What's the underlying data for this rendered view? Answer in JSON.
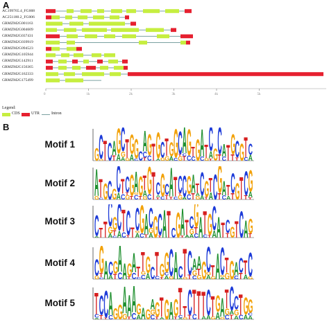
{
  "panel_a": {
    "label": "A",
    "genes": [
      "AC199765.4_FG008",
      "AC251180.2_FG006",
      "GRMZM2G001163",
      "GRMZM2G004609",
      "GRMZM2G037431",
      "GRMZM2G039919",
      "GRMZM2G094523",
      "GRMZM2G105944",
      "GRMZM2G142911",
      "GRMZM2G156365",
      "GRMZM2G162333",
      "GRMZM2G175499"
    ],
    "axis_ticks": [
      "0",
      "1k",
      "2k",
      "3k",
      "4k",
      "5k"
    ],
    "legend": {
      "title": "Legend:",
      "items": [
        {
          "label": "CDS",
          "color": "#c6ee40"
        },
        {
          "label": "UTR",
          "color": "#e6202f"
        },
        {
          "label": "Intron",
          "color": "#7aa0a0"
        }
      ]
    }
  },
  "panel_b": {
    "label": "B",
    "motifs": [
      {
        "name": "Motif 1",
        "seq": "GCTCAGCTGGCAGTGCTGGCAGTGATCGCATGCGTC"
      },
      {
        "name": "Motif 2",
        "seq": "ATGCGCTCGAGTGTCGCATCCGATCGTCGATCGTCG"
      },
      {
        "name": "Motif 3",
        "seq": "CTTCGCTCTCGACGCATCGATCGATGCATCGTCAG"
      },
      {
        "name": "Motif 4",
        "seq": "CGACGAAGATTGCTGGCACTCAAGCTACTGACTC"
      },
      {
        "name": "Motif 5",
        "seq": "TCCAGGAAAGAGAGTGAGTTCTTTCTGATCCTGG"
      }
    ],
    "nucleotide_colors": {
      "A": "#1e8f2e",
      "C": "#1d3bd8",
      "G": "#f2a20a",
      "T": "#d61f1f"
    }
  }
}
